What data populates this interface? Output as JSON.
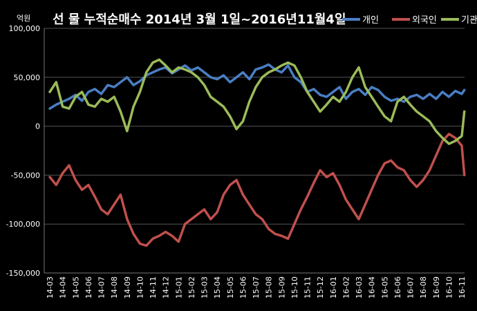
{
  "chart_data": {
    "type": "line",
    "title": "선 물 누적순매수 2014년 3월 1일~2016년11월4일",
    "unit_label": "억원",
    "ylim": [
      -150000,
      100000
    ],
    "y_ticks": [
      100000,
      50000,
      0,
      -50000,
      -100000,
      -150000
    ],
    "y_tick_labels": [
      "100,000",
      "50,000",
      "0",
      "-50,000",
      "-100,000",
      "-150,000"
    ],
    "x_tick_labels": [
      "14-03",
      "14-04",
      "14-05",
      "14-06",
      "14-07",
      "14-08",
      "14-09",
      "14-10",
      "14-11",
      "14-12",
      "15-01",
      "15-02",
      "15-03",
      "15-04",
      "15-05",
      "15-06",
      "15-07",
      "15-08",
      "15-09",
      "15-10",
      "15-11",
      "15-12",
      "16-01",
      "16-02",
      "16-03",
      "16-04",
      "16-05",
      "16-06",
      "16-07",
      "16-08",
      "16-09",
      "16-10",
      "16-11"
    ],
    "grid": "horizontal",
    "legend_position": "top-right",
    "series": [
      {
        "name": "개인",
        "color": "#4A7EC4",
        "x": [
          0,
          0.5,
          1,
          1.5,
          2,
          2.5,
          3,
          3.5,
          4,
          4.5,
          5,
          5.5,
          6,
          6.5,
          7,
          7.5,
          8,
          8.5,
          9,
          9.5,
          10,
          10.5,
          11,
          11.5,
          12,
          12.5,
          13,
          13.5,
          14,
          14.5,
          15,
          15.5,
          16,
          16.5,
          17,
          17.5,
          18,
          18.5,
          19,
          19.5,
          20,
          20.5,
          21,
          21.5,
          22,
          22.5,
          23,
          23.5,
          24,
          24.5,
          25,
          25.5,
          26,
          26.5,
          27,
          27.5,
          28,
          28.5,
          29,
          29.5,
          30,
          30.5,
          31,
          31.5,
          32,
          32.2
        ],
        "values": [
          18000,
          22000,
          25000,
          28000,
          32000,
          26000,
          35000,
          38000,
          33000,
          42000,
          40000,
          45000,
          50000,
          42000,
          46000,
          52000,
          55000,
          58000,
          60000,
          54000,
          58000,
          62000,
          57000,
          60000,
          55000,
          50000,
          48000,
          52000,
          45000,
          50000,
          55000,
          48000,
          58000,
          60000,
          63000,
          58000,
          55000,
          62000,
          50000,
          45000,
          35000,
          38000,
          32000,
          30000,
          35000,
          40000,
          28000,
          35000,
          38000,
          32000,
          40000,
          37000,
          30000,
          26000,
          28000,
          25000,
          30000,
          32000,
          28000,
          33000,
          28000,
          35000,
          30000,
          36000,
          33000,
          37000
        ]
      },
      {
        "name": "외국인",
        "color": "#C0504D",
        "x": [
          0,
          0.5,
          1,
          1.5,
          2,
          2.5,
          3,
          3.5,
          4,
          4.5,
          5,
          5.5,
          6,
          6.5,
          7,
          7.5,
          8,
          8.5,
          9,
          9.5,
          10,
          10.5,
          11,
          11.5,
          12,
          12.5,
          13,
          13.5,
          14,
          14.5,
          15,
          15.5,
          16,
          16.5,
          17,
          17.5,
          18,
          18.5,
          19,
          19.5,
          20,
          20.5,
          21,
          21.5,
          22,
          22.5,
          23,
          23.5,
          24,
          24.5,
          25,
          25.5,
          26,
          26.5,
          27,
          27.5,
          28,
          28.5,
          29,
          29.5,
          30,
          30.5,
          31,
          31.5,
          32,
          32.2
        ],
        "values": [
          -52000,
          -60000,
          -48000,
          -40000,
          -55000,
          -65000,
          -60000,
          -72000,
          -85000,
          -90000,
          -80000,
          -70000,
          -95000,
          -110000,
          -120000,
          -122000,
          -115000,
          -112000,
          -108000,
          -112000,
          -118000,
          -100000,
          -95000,
          -90000,
          -85000,
          -95000,
          -88000,
          -70000,
          -60000,
          -55000,
          -70000,
          -80000,
          -90000,
          -95000,
          -105000,
          -110000,
          -112000,
          -115000,
          -100000,
          -85000,
          -72000,
          -58000,
          -45000,
          -52000,
          -48000,
          -60000,
          -75000,
          -85000,
          -95000,
          -80000,
          -65000,
          -50000,
          -38000,
          -35000,
          -42000,
          -45000,
          -55000,
          -62000,
          -55000,
          -45000,
          -30000,
          -15000,
          -8000,
          -12000,
          -20000,
          -50000
        ]
      },
      {
        "name": "기관",
        "color": "#9BBB59",
        "x": [
          0,
          0.5,
          1,
          1.5,
          2,
          2.5,
          3,
          3.5,
          4,
          4.5,
          5,
          5.5,
          6,
          6.5,
          7,
          7.5,
          8,
          8.5,
          9,
          9.5,
          10,
          10.5,
          11,
          11.5,
          12,
          12.5,
          13,
          13.5,
          14,
          14.5,
          15,
          15.5,
          16,
          16.5,
          17,
          17.5,
          18,
          18.5,
          19,
          19.5,
          20,
          20.5,
          21,
          21.5,
          22,
          22.5,
          23,
          23.5,
          24,
          24.5,
          25,
          25.5,
          26,
          26.5,
          27,
          27.5,
          28,
          28.5,
          29,
          29.5,
          30,
          30.5,
          31,
          31.5,
          32,
          32.2
        ],
        "values": [
          35000,
          45000,
          20000,
          18000,
          30000,
          35000,
          22000,
          20000,
          28000,
          25000,
          30000,
          15000,
          -5000,
          20000,
          35000,
          55000,
          65000,
          68000,
          62000,
          55000,
          60000,
          58000,
          55000,
          50000,
          42000,
          30000,
          25000,
          20000,
          10000,
          -3000,
          5000,
          25000,
          40000,
          50000,
          55000,
          58000,
          62000,
          65000,
          62000,
          50000,
          35000,
          25000,
          15000,
          22000,
          30000,
          25000,
          35000,
          50000,
          60000,
          40000,
          30000,
          20000,
          10000,
          5000,
          25000,
          30000,
          22000,
          15000,
          10000,
          5000,
          -5000,
          -12000,
          -18000,
          -15000,
          -10000,
          15000
        ]
      }
    ]
  }
}
